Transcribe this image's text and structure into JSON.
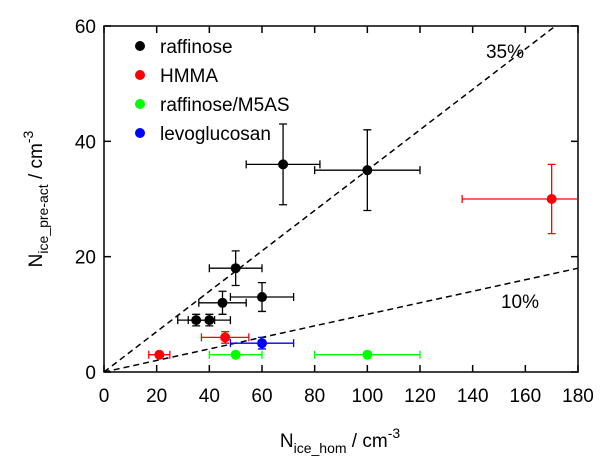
{
  "chart_data": {
    "type": "scatter",
    "xlabel": {
      "main": "N",
      "sub": "ice_hom",
      "unit": " / cm",
      "sup": "-3"
    },
    "ylabel": {
      "main": "N",
      "sub": "ice_pre-act",
      "unit": " / cm",
      "sup": "-3"
    },
    "xlim": [
      0,
      180
    ],
    "xticks": [
      0,
      20,
      40,
      60,
      80,
      100,
      120,
      140,
      160,
      180
    ],
    "ylim": [
      0,
      60
    ],
    "yticks": [
      0,
      20,
      40,
      60
    ],
    "legend": "upper left",
    "reference_lines": [
      {
        "value": 0.35,
        "label": "35%"
      },
      {
        "value": 0.1,
        "label": "10%"
      }
    ],
    "series": [
      {
        "name": "raffinose",
        "color": "#000000",
        "x": [
          68,
          100,
          50,
          60,
          45,
          35,
          40
        ],
        "values": [
          36,
          35,
          18,
          13,
          12,
          9,
          9
        ],
        "xerr": [
          14,
          20,
          10,
          12,
          9,
          7,
          8
        ],
        "yerr": [
          7,
          7,
          3,
          2.5,
          2,
          1,
          1
        ]
      },
      {
        "name": "HMMA",
        "color": "#ff0000",
        "x": [
          170,
          21,
          46
        ],
        "values": [
          30,
          3,
          6
        ],
        "xerr": [
          34,
          4,
          9
        ],
        "yerr": [
          6,
          null,
          1
        ]
      },
      {
        "name": "raffinose/M5AS",
        "color": "#00ff00",
        "x": [
          50,
          100
        ],
        "values": [
          3,
          3
        ],
        "xerr": [
          10,
          20
        ],
        "yerr": [
          null,
          null
        ]
      },
      {
        "name": "levoglucosan",
        "color": "#0000ff",
        "x": [
          60
        ],
        "values": [
          5
        ],
        "xerr": [
          12
        ],
        "yerr": [
          1
        ]
      }
    ]
  }
}
